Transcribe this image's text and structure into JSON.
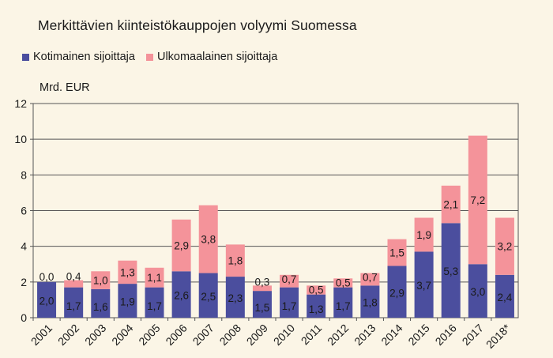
{
  "chart_data": {
    "type": "bar",
    "stacked": true,
    "title": "Merkittävien kiinteistökauppojen volyymi Suomessa",
    "ylabel": "Mrd. EUR",
    "ylim": [
      0,
      12
    ],
    "yticks": [
      0,
      2,
      4,
      6,
      8,
      10,
      12
    ],
    "grid": true,
    "legend_position": "top-left",
    "categories": [
      "2001",
      "2002",
      "2003",
      "2004",
      "2005",
      "2006",
      "2007",
      "2008",
      "2009",
      "2010",
      "2011",
      "2012",
      "2013",
      "2014",
      "2015",
      "2016",
      "2017",
      "2018*"
    ],
    "series": [
      {
        "name": "Kotimainen sijoittaja",
        "color": "#4b4e9e",
        "values": [
          2.0,
          1.7,
          1.6,
          1.9,
          1.7,
          2.6,
          2.5,
          2.3,
          1.5,
          1.7,
          1.3,
          1.7,
          1.8,
          2.9,
          3.7,
          5.3,
          3.0,
          2.4
        ],
        "labels": [
          "2,0",
          "1,7",
          "1,6",
          "1,9",
          "1,7",
          "2,6",
          "2,5",
          "2,3",
          "1,5",
          "1,7",
          "1,3",
          "1,7",
          "1,8",
          "2,9",
          "3,7",
          "5,3",
          "3,0",
          "2,4"
        ]
      },
      {
        "name": "Ulkomaalainen sijoittaja",
        "color": "#f4939a",
        "values": [
          0.0,
          0.4,
          1.0,
          1.3,
          1.1,
          2.9,
          3.8,
          1.8,
          0.3,
          0.7,
          0.5,
          0.5,
          0.7,
          1.5,
          1.9,
          2.1,
          7.2,
          3.2
        ],
        "labels": [
          "0,0",
          "0,4",
          "1,0",
          "1,3",
          "1,1",
          "2,9",
          "3,8",
          "1,8",
          "0,3",
          "0,7",
          "0,5",
          "0,5",
          "0,7",
          "1,5",
          "1,9",
          "2,1",
          "7,2",
          "3,2"
        ]
      }
    ]
  }
}
